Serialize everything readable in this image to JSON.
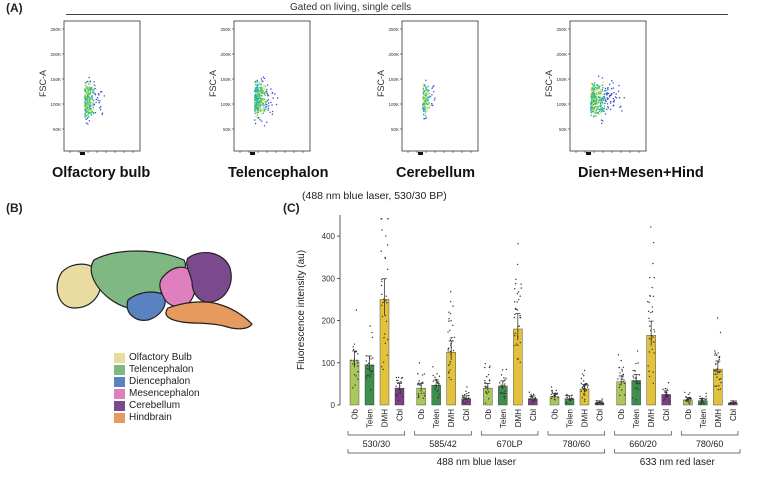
{
  "panel_a": {
    "label": "(A)",
    "gate_title": "Gated on living, single cells",
    "y_axis_label": "FSC-A",
    "y_ticks": [
      "250K",
      "200K",
      "150K",
      "100K",
      "50K"
    ],
    "plots": [
      {
        "title": "Olfactory bulb",
        "spread": 0.35,
        "density": 0.7
      },
      {
        "title": "Telencephalon",
        "spread": 0.55,
        "density": 0.85
      },
      {
        "title": "Cerebellum",
        "spread": 0.2,
        "density": 0.35
      },
      {
        "title": "Dien+Mesen+Hind",
        "spread": 0.8,
        "density": 1.0
      }
    ]
  },
  "panel_b": {
    "label": "(B)",
    "legend": [
      {
        "name": "Olfactory Bulb",
        "color": "#e8dca0"
      },
      {
        "name": "Telencephalon",
        "color": "#7fb882"
      },
      {
        "name": "Diencephalon",
        "color": "#5b82c0"
      },
      {
        "name": "Mesencephalon",
        "color": "#e07fbf"
      },
      {
        "name": "Cerebellum",
        "color": "#7b4a8e"
      },
      {
        "name": "Hindbrain",
        "color": "#e79a5e"
      }
    ]
  },
  "panel_c": {
    "label": "(C)",
    "subtitle": "(488 nm blue laser, 530/30 BP)",
    "laser_groups": [
      "488 nm blue laser",
      "633 nm red laser"
    ]
  },
  "chart_data": {
    "type": "bar",
    "ylabel": "Fluorescence intensity (au)",
    "ylim": [
      0,
      450
    ],
    "yticks": [
      0,
      100,
      200,
      300,
      400
    ],
    "region_colors": {
      "Ob": "#aac95a",
      "Telen": "#3e8f4f",
      "DMH": "#e2c23c",
      "Cbl": "#7e3f86"
    },
    "filters": [
      {
        "name": "530/30",
        "laser": "488 nm blue laser",
        "categories": [
          "Ob",
          "Telen",
          "DMH",
          "Cbl"
        ],
        "values": [
          105,
          95,
          250,
          40
        ]
      },
      {
        "name": "585/42",
        "laser": "488 nm blue laser",
        "categories": [
          "Ob",
          "Telen",
          "DMH",
          "Cbl"
        ],
        "values": [
          40,
          47,
          125,
          15
        ]
      },
      {
        "name": "670LP",
        "laser": "488 nm blue laser",
        "categories": [
          "Ob",
          "Telen",
          "DMH",
          "Cbl"
        ],
        "values": [
          40,
          45,
          180,
          15
        ]
      },
      {
        "name": "780/60",
        "laser": "488 nm blue laser",
        "categories": [
          "Ob",
          "Telen",
          "DMH",
          "Cbl"
        ],
        "values": [
          20,
          15,
          38,
          5
        ]
      },
      {
        "name": "660/20",
        "laser": "633 nm red laser",
        "categories": [
          "Ob",
          "Telen",
          "DMH",
          "Cbl"
        ],
        "values": [
          55,
          58,
          165,
          25
        ]
      },
      {
        "name": "780/60",
        "laser": "633 nm red laser",
        "categories": [
          "Ob",
          "Telen",
          "DMH",
          "Cbl"
        ],
        "values": [
          12,
          10,
          85,
          5
        ]
      }
    ]
  }
}
